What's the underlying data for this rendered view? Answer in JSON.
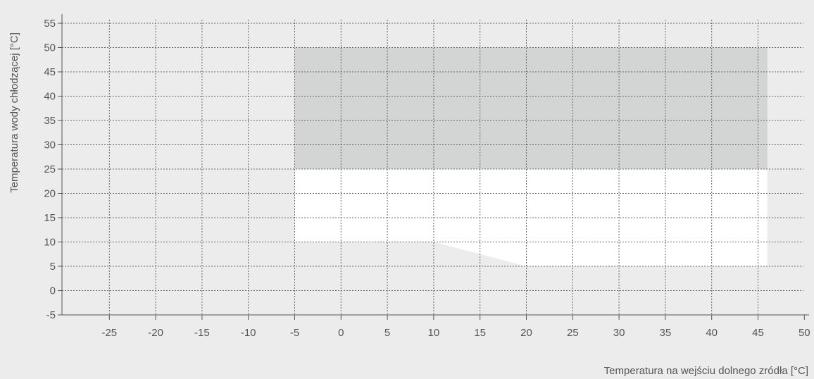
{
  "chart_data": {
    "type": "area",
    "xlabel": "Temperatura na wejściu dolnego zródła [°C]",
    "ylabel": "Temperatura wody chłodzącej [°C]",
    "xlim": [
      -30,
      50
    ],
    "ylim": [
      -5,
      55
    ],
    "x_ticks": [
      -25,
      -20,
      -15,
      -10,
      -5,
      0,
      5,
      10,
      15,
      20,
      25,
      30,
      35,
      40,
      45,
      50
    ],
    "y_ticks": [
      -5,
      0,
      5,
      10,
      15,
      20,
      25,
      30,
      35,
      40,
      45,
      50,
      55
    ],
    "grid": true,
    "regions": [
      {
        "fill": "#d3d5d4",
        "points": [
          [
            -5,
            25
          ],
          [
            -5,
            50
          ],
          [
            46,
            50
          ],
          [
            46,
            25
          ]
        ]
      },
      {
        "fill": "#ffffff",
        "points": [
          [
            -5,
            10
          ],
          [
            -5,
            25
          ],
          [
            46,
            25
          ],
          [
            46,
            5
          ],
          [
            20,
            5
          ],
          [
            10,
            10
          ]
        ]
      }
    ]
  },
  "colors": {
    "background": "#ececec",
    "grid": "#666666",
    "axis": "#555555"
  }
}
